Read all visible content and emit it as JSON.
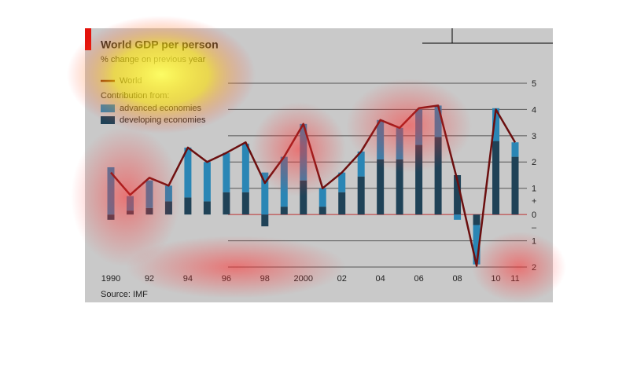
{
  "chart_data": {
    "type": "bar",
    "title": "World GDP per person",
    "subtitle": "% change on previous year",
    "legend_heading": "Contribution from:",
    "source": "Source: IMF",
    "sign_labels": [
      "+",
      "–"
    ],
    "categories": [
      "1990",
      null,
      "92",
      null,
      "94",
      null,
      "96",
      null,
      "98",
      null,
      "2000",
      null,
      "02",
      null,
      "04",
      null,
      "06",
      null,
      "08",
      null,
      "10",
      "11"
    ],
    "series": [
      {
        "name": "developing economies",
        "type": "bar",
        "color": "#1f4257",
        "values": [
          -0.2,
          0.15,
          0.25,
          0.5,
          0.65,
          0.5,
          0.85,
          0.85,
          -0.45,
          0.3,
          1.3,
          0.3,
          0.85,
          1.45,
          2.1,
          2.1,
          2.65,
          2.95,
          1.5,
          -0.4,
          2.8,
          2.2
        ]
      },
      {
        "name": "advanced economies",
        "type": "bar",
        "color": "#2a86b5",
        "values": [
          1.8,
          0.55,
          1.05,
          0.6,
          1.9,
          1.5,
          1.5,
          1.85,
          1.6,
          1.9,
          2.15,
          0.7,
          0.75,
          0.95,
          1.5,
          1.2,
          1.35,
          1.2,
          -0.2,
          -1.5,
          1.25,
          0.55
        ]
      },
      {
        "name": "World",
        "type": "line",
        "color": "#6b0f0f",
        "values": [
          1.6,
          0.75,
          1.4,
          1.1,
          2.55,
          2.0,
          2.35,
          2.75,
          1.2,
          2.2,
          3.45,
          1.0,
          1.6,
          2.4,
          3.6,
          3.3,
          4.05,
          4.15,
          1.3,
          -1.95,
          4.0,
          2.75
        ]
      }
    ],
    "ylim": [
      -2,
      5
    ],
    "yticks": [
      {
        "value": -2,
        "label": "2"
      },
      {
        "value": -1,
        "label": "1"
      },
      0,
      1,
      2,
      3,
      4,
      5
    ],
    "grid": true
  }
}
